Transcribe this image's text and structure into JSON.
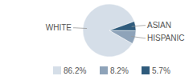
{
  "chart_data": {
    "type": "pie",
    "categories": [
      "WHITE",
      "HISPANIC",
      "ASIAN"
    ],
    "values": [
      86.2,
      8.2,
      5.7
    ],
    "value_labels": [
      "86.2%",
      "8.2%",
      "5.7%"
    ],
    "colors": [
      "#d5dee8",
      "#8ea3b9",
      "#2f5b7c"
    ],
    "legend": "bottom"
  }
}
